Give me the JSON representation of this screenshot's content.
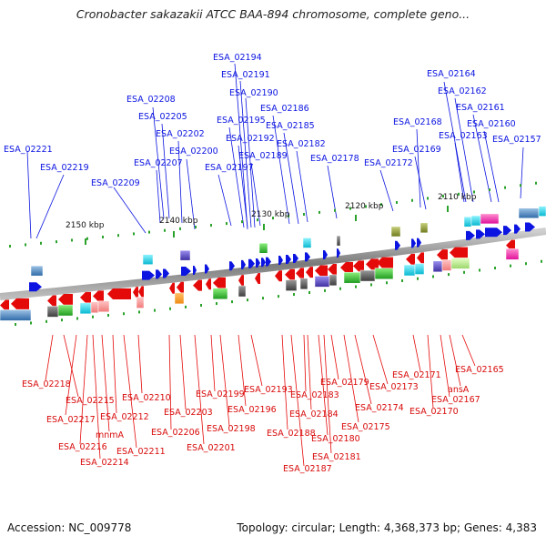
{
  "title": "Cronobacter sakazakii ATCC BAA-894 chromosome, complete geno...",
  "accession": "Accession: NC_009778",
  "summary": "Topology: circular; Length: 4,368,373 bp; Genes: 4,383",
  "scale_labels": [
    "2150 kbp",
    "2140 kbp",
    "2130 kbp",
    "2120 kbp",
    "2110 kbp"
  ],
  "top_labels": [
    "ESA_02194",
    "ESA_02191",
    "ESA_02190",
    "ESA_02186",
    "ESA_02185",
    "ESA_02195",
    "ESA_02192",
    "ESA_02182",
    "ESA_02189",
    "ESA_02178",
    "ESA_02197",
    "ESA_02208",
    "ESA_02205",
    "ESA_02202",
    "ESA_02200",
    "ESA_02207",
    "ESA_02209",
    "ESA_02221",
    "ESA_02219",
    "ESA_02164",
    "ESA_02162",
    "ESA_02161",
    "ESA_02160",
    "ESA_02168",
    "ESA_02163",
    "ESA_02157",
    "ESA_02169",
    "ESA_02172"
  ],
  "bottom_labels": [
    "ESA_02218",
    "ESA_02215",
    "ESA_02217",
    "ESA_02216",
    "ESA_02214",
    "mnmA",
    "ESA_02212",
    "ESA_02211",
    "ESA_02210",
    "ESA_02206",
    "ESA_02203",
    "ESA_02201",
    "ESA_02199",
    "ESA_02198",
    "ESA_02196",
    "ESA_02193",
    "ESA_02188",
    "ESA_02187",
    "ESA_02183",
    "ESA_02184",
    "ESA_02180",
    "ESA_02181",
    "ESA_02179",
    "ESA_02175",
    "ESA_02174",
    "ESA_02173",
    "ESA_02171",
    "ESA_02170",
    "ESA_02167",
    "ansA",
    "ESA_02165"
  ],
  "colors": {
    "forward": "#0b14e0",
    "reverse": "#e50a0a",
    "backbone": "#8a8a8a",
    "tick": "#2aa12a"
  }
}
